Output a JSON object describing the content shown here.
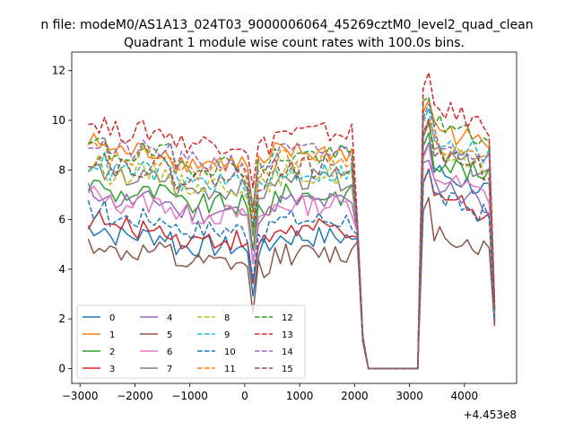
{
  "figure": {
    "suptitle": "n file: modeM0/AS1A13_024T03_9000006064_45269cztM0_level2_quad_clean"
  },
  "chart_data": {
    "type": "line",
    "title": "Quadrant 1 module wise count rates with 100.0s bins.",
    "xlabel": "",
    "ylabel": "",
    "x_offset_label": "+4.453e8",
    "xlim": [
      -3150,
      4950
    ],
    "ylim": [
      -0.6,
      12.75
    ],
    "xticks": [
      -3000,
      -2000,
      -1000,
      0,
      1000,
      2000,
      3000,
      4000
    ],
    "xtick_labels": [
      "−3000",
      "−2000",
      "−1000",
      "0",
      "1000",
      "2000",
      "3000",
      "4000"
    ],
    "yticks": [
      0,
      2,
      4,
      6,
      8,
      10,
      12
    ],
    "ytick_labels": [
      "0",
      "2",
      "4",
      "6",
      "8",
      "10",
      "12"
    ],
    "grid": false,
    "legend_location": "lower-left",
    "legend_columns": 4,
    "x": [
      -2850,
      -2750,
      -2650,
      -2550,
      -2450,
      -2350,
      -2250,
      -2150,
      -2050,
      -1950,
      -1850,
      -1750,
      -1650,
      -1550,
      -1450,
      -1350,
      -1250,
      -1150,
      -1050,
      -950,
      -850,
      -750,
      -650,
      -550,
      -450,
      -350,
      -250,
      -150,
      -50,
      50,
      150,
      250,
      350,
      450,
      550,
      650,
      750,
      850,
      950,
      1050,
      1150,
      1250,
      1350,
      1450,
      1550,
      1650,
      1750,
      1850,
      1950,
      2050,
      2150,
      2250,
      2350,
      2450,
      2550,
      2650,
      2750,
      2850,
      2950,
      3050,
      3150,
      3250,
      3350,
      3450,
      3550,
      3650,
      3750,
      3850,
      3950,
      4050,
      4150,
      4250,
      4350,
      4450,
      4550
    ],
    "series": [
      {
        "name": "0",
        "color": "#1f77b4",
        "dash": "solid",
        "base": 5.2,
        "burst": 8.0
      },
      {
        "name": "1",
        "color": "#ff7f0e",
        "dash": "solid",
        "base": 8.6,
        "burst": 9.8
      },
      {
        "name": "2",
        "color": "#2ca02c",
        "dash": "solid",
        "base": 6.9,
        "burst": 8.5
      },
      {
        "name": "3",
        "color": "#d62728",
        "dash": "solid",
        "base": 5.5,
        "burst": 7.1
      },
      {
        "name": "4",
        "color": "#9467bd",
        "dash": "solid",
        "base": 6.6,
        "burst": 7.5
      },
      {
        "name": "5",
        "color": "#8c564b",
        "dash": "solid",
        "base": 4.5,
        "burst": 5.6
      },
      {
        "name": "6",
        "color": "#e377c2",
        "dash": "solid",
        "base": 6.5,
        "burst": 7.8
      },
      {
        "name": "7",
        "color": "#7f7f7f",
        "dash": "solid",
        "base": 7.5,
        "burst": 8.7
      },
      {
        "name": "8",
        "color": "#bcbd22",
        "dash": "dashed",
        "base": 7.7,
        "burst": 8.9
      },
      {
        "name": "9",
        "color": "#17becf",
        "dash": "dashed",
        "base": 7.8,
        "burst": 9.4
      },
      {
        "name": "10",
        "color": "#1f77b4",
        "dash": "dashed",
        "base": 5.9,
        "burst": 7.0
      },
      {
        "name": "11",
        "color": "#ff7f0e",
        "dash": "dashed",
        "base": 8.3,
        "burst": 9.1
      },
      {
        "name": "12",
        "color": "#2ca02c",
        "dash": "dashed",
        "base": 8.5,
        "burst": 10.0
      },
      {
        "name": "13",
        "color": "#d62728",
        "dash": "dashed",
        "base": 9.4,
        "burst": 10.6
      },
      {
        "name": "14",
        "color": "#9467bd",
        "dash": "dashed",
        "base": 8.6,
        "burst": 9.4
      },
      {
        "name": "15",
        "color": "#8c564b",
        "dash": "dashed",
        "base": 8.0,
        "burst": 8.8
      }
    ]
  }
}
